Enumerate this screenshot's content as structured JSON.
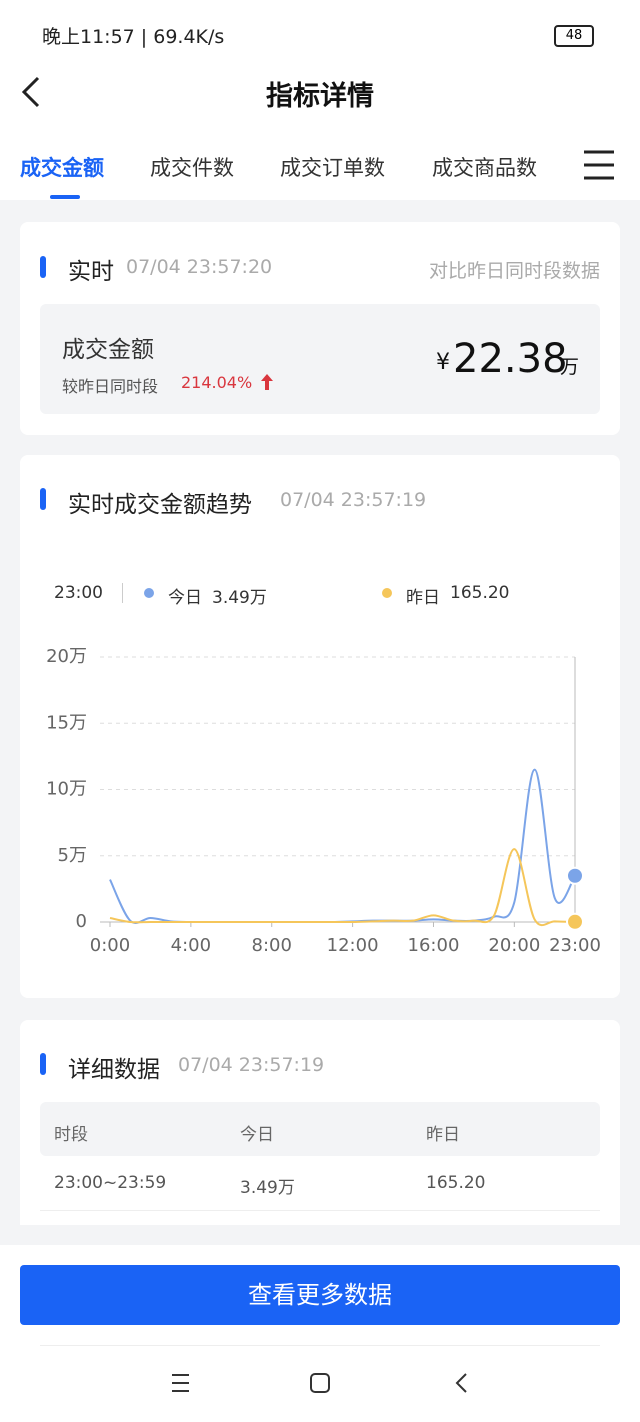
{
  "status_bar": {
    "time": "晚上11:57 | 69.4K/s",
    "battery": "48"
  },
  "header": {
    "title": "指标详情"
  },
  "tabs": [
    "成交金额",
    "成交件数",
    "成交订单数",
    "成交商品数"
  ],
  "realtime": {
    "label": "实时",
    "timestamp": "07/04 23:57:20",
    "compare": "对比昨日同时段数据",
    "metric": "成交金额",
    "change_label": "较昨日同时段",
    "change": "214.04%",
    "currency": "¥",
    "amount": "22.38",
    "unit": "万"
  },
  "trend": {
    "title": "实时成交金额趋势",
    "timestamp": "07/04 23:57:19",
    "tooltip": {
      "time": "23:00",
      "today_label": "今日",
      "today_value": "3.49万",
      "yesterday_label": "昨日",
      "yesterday_value": "165.20"
    },
    "chart_data": {
      "type": "line",
      "x": [
        0,
        1,
        2,
        3,
        4,
        5,
        6,
        7,
        8,
        9,
        10,
        11,
        12,
        13,
        14,
        15,
        16,
        17,
        18,
        19,
        20,
        21,
        22,
        23
      ],
      "xlim": [
        0,
        23
      ],
      "xticks": [
        {
          "value": 0,
          "label": "0:00"
        },
        {
          "value": 4,
          "label": "4:00"
        },
        {
          "value": 8,
          "label": "8:00"
        },
        {
          "value": 12,
          "label": "12:00"
        },
        {
          "value": 16,
          "label": "16:00"
        },
        {
          "value": 20,
          "label": "20:00"
        },
        {
          "value": 23,
          "label": "23:00"
        }
      ],
      "ylim": [
        0,
        20
      ],
      "yticks": [
        0,
        {
          "value": 5,
          "label": "5万"
        },
        {
          "value": 10,
          "label": "10万"
        },
        {
          "value": 15,
          "label": "15万"
        },
        {
          "value": 20,
          "label": "20万"
        }
      ],
      "grid": true,
      "series": [
        {
          "name": "今日",
          "color": "#7ba4e8",
          "values": [
            3.2,
            0.1,
            0.3,
            0.05,
            0,
            0,
            0,
            0,
            0,
            0,
            0,
            0,
            0.05,
            0.1,
            0.1,
            0.1,
            0.2,
            0.1,
            0.1,
            0.4,
            1.5,
            11.5,
            1.8,
            3.49
          ]
        },
        {
          "name": "昨日",
          "color": "#f5c65a",
          "values": [
            0.3,
            0,
            0,
            0,
            0,
            0,
            0,
            0,
            0,
            0,
            0,
            0,
            0,
            0.05,
            0.1,
            0.1,
            0.5,
            0.1,
            0.1,
            0.5,
            5.5,
            0.2,
            0.05,
            0.0165
          ]
        }
      ]
    }
  },
  "detail": {
    "title": "详细数据",
    "timestamp": "07/04 23:57:19",
    "headers": [
      "时段",
      "今日",
      "昨日"
    ],
    "rows": [
      [
        "23:00~23:59",
        "3.49万",
        "165.20"
      ]
    ]
  },
  "button": "查看更多数据"
}
